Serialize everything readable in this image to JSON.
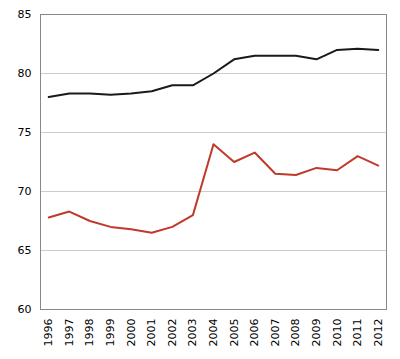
{
  "chart_data": {
    "type": "line",
    "x": [
      1996,
      1997,
      1998,
      1999,
      2000,
      2001,
      2002,
      2003,
      2004,
      2005,
      2006,
      2007,
      2008,
      2009,
      2010,
      2011,
      2012
    ],
    "series": [
      {
        "color": "#1a1a1a",
        "values": [
          78.0,
          78.3,
          78.3,
          78.2,
          78.3,
          78.5,
          79.0,
          79.0,
          80.0,
          81.2,
          81.5,
          81.5,
          81.5,
          81.2,
          82.0,
          82.1,
          82.0
        ]
      },
      {
        "color": "#c0392b",
        "values": [
          67.8,
          68.3,
          67.5,
          67.0,
          66.8,
          66.5,
          67.0,
          68.0,
          74.0,
          72.5,
          73.3,
          71.5,
          71.4,
          72.0,
          71.8,
          73.0,
          72.2
        ]
      }
    ],
    "xlim": [
      1995.6,
      2012.4
    ],
    "xticks": [
      1996,
      1997,
      1998,
      1999,
      2000,
      2001,
      2002,
      2003,
      2004,
      2005,
      2006,
      2007,
      2008,
      2009,
      2010,
      2011,
      2012
    ],
    "ylim": [
      60,
      85
    ],
    "yticks": [
      60,
      65,
      70,
      75,
      80,
      85
    ],
    "grid": "y"
  }
}
